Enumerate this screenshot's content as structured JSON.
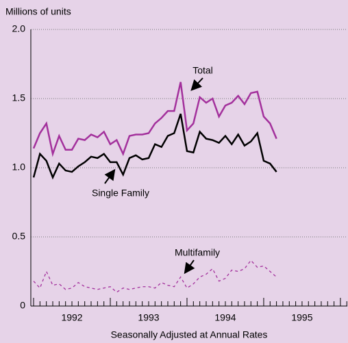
{
  "chart_data": {
    "type": "line",
    "y_label": "Millions of units",
    "x_label": "Seasonally Adjusted at Annual Rates",
    "x": [
      1992,
      1992.083,
      1992.167,
      1992.25,
      1992.333,
      1992.417,
      1992.5,
      1992.583,
      1992.667,
      1992.75,
      1992.833,
      1992.917,
      1993,
      1993.083,
      1993.167,
      1993.25,
      1993.333,
      1993.417,
      1993.5,
      1993.583,
      1993.667,
      1993.75,
      1993.833,
      1993.917,
      1994,
      1994.083,
      1994.167,
      1994.25,
      1994.333,
      1994.417,
      1994.5,
      1994.583,
      1994.667,
      1994.75,
      1994.833,
      1994.917,
      1995,
      1995.083,
      1995.167
    ],
    "series": [
      {
        "name": "Total",
        "color": "#a3309c",
        "dashed": false,
        "values": [
          1.14,
          1.25,
          1.32,
          1.1,
          1.23,
          1.13,
          1.13,
          1.21,
          1.2,
          1.24,
          1.22,
          1.26,
          1.17,
          1.2,
          1.1,
          1.23,
          1.24,
          1.24,
          1.25,
          1.32,
          1.36,
          1.41,
          1.41,
          1.62,
          1.27,
          1.32,
          1.51,
          1.47,
          1.5,
          1.37,
          1.45,
          1.47,
          1.52,
          1.46,
          1.54,
          1.55,
          1.37,
          1.32,
          1.21
        ]
      },
      {
        "name": "Single Family",
        "color": "#000000",
        "dashed": false,
        "values": [
          0.93,
          1.1,
          1.05,
          0.93,
          1.03,
          0.98,
          0.97,
          1.01,
          1.04,
          1.08,
          1.07,
          1.1,
          1.04,
          1.04,
          0.95,
          1.07,
          1.09,
          1.06,
          1.07,
          1.17,
          1.15,
          1.23,
          1.25,
          1.39,
          1.12,
          1.11,
          1.26,
          1.21,
          1.2,
          1.18,
          1.23,
          1.17,
          1.24,
          1.16,
          1.19,
          1.25,
          1.05,
          1.03,
          0.97
        ]
      },
      {
        "name": "Multifamily",
        "color": "#a3309c",
        "dashed": true,
        "values": [
          0.18,
          0.13,
          0.25,
          0.15,
          0.16,
          0.12,
          0.13,
          0.17,
          0.14,
          0.13,
          0.12,
          0.13,
          0.14,
          0.1,
          0.13,
          0.12,
          0.13,
          0.14,
          0.14,
          0.13,
          0.17,
          0.15,
          0.14,
          0.21,
          0.13,
          0.16,
          0.21,
          0.23,
          0.27,
          0.18,
          0.2,
          0.26,
          0.25,
          0.27,
          0.33,
          0.28,
          0.29,
          0.25,
          0.21
        ]
      }
    ],
    "xlim": [
      1991.964,
      1996.09
    ],
    "xticks": [
      {
        "value": 1992.5,
        "label": "1992"
      },
      {
        "value": 1993.5,
        "label": "1993"
      },
      {
        "value": 1994.5,
        "label": "1994"
      },
      {
        "value": 1995.5,
        "label": "1995"
      }
    ],
    "ylim": [
      0,
      2
    ],
    "yticks": [
      0,
      0.5,
      {
        "value": 1,
        "label": "1.0"
      },
      1.5,
      {
        "value": 2,
        "label": "2.0"
      }
    ],
    "grid": true
  }
}
